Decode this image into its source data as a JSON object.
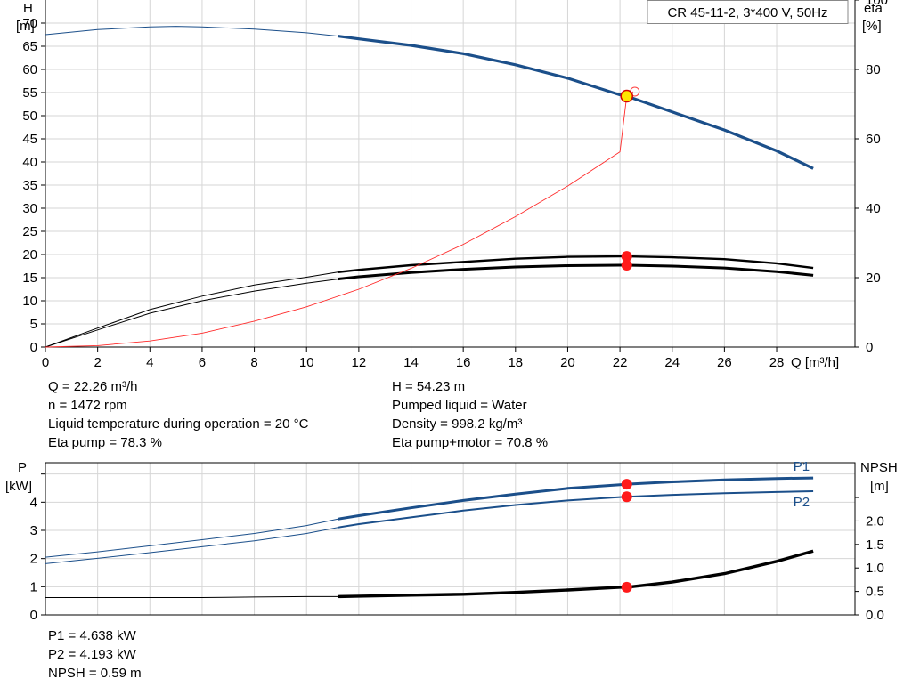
{
  "chart_data": [
    {
      "type": "line",
      "title": "",
      "box_label": "CR 45-11-2, 3*400 V, 50Hz",
      "xlabel": "Q [m³/h]",
      "xlim": [
        0,
        31
      ],
      "x_ticks": [
        0,
        2,
        4,
        6,
        8,
        10,
        12,
        14,
        16,
        18,
        20,
        22,
        24,
        26,
        28
      ],
      "left_axis": {
        "label": "H",
        "unit": "[m]",
        "ylim": [
          0,
          75
        ],
        "ticks": [
          0,
          5,
          10,
          15,
          20,
          25,
          30,
          35,
          40,
          45,
          50,
          55,
          60,
          65,
          70
        ]
      },
      "right_axis": {
        "label": "eta",
        "unit": "[%]",
        "ylim": [
          0,
          100
        ],
        "ticks": [
          0,
          20,
          40,
          60,
          80,
          100
        ]
      },
      "grid": true,
      "series": [
        {
          "key": "H",
          "color": "#1b4f8a",
          "axis": "left",
          "recommended_range": [
            11.2,
            29.4
          ],
          "x": [
            0,
            2,
            4,
            5,
            6,
            8,
            10,
            11.2,
            12,
            14,
            16,
            18,
            20,
            22,
            22.26,
            24,
            26,
            28,
            29.4
          ],
          "y": [
            67.5,
            68.6,
            69.2,
            69.3,
            69.2,
            68.7,
            67.9,
            67.2,
            66.6,
            65.2,
            63.4,
            61.0,
            58.1,
            54.5,
            54.23,
            50.8,
            46.9,
            42.4,
            38.6
          ]
        },
        {
          "key": "eta_pump",
          "color": "#000000",
          "axis": "left",
          "recommended_range": [
            11.2,
            29.4
          ],
          "x": [
            0,
            2,
            4,
            6,
            8,
            10,
            11.2,
            12,
            14,
            16,
            18,
            20,
            22,
            22.26,
            24,
            26,
            28,
            29.4
          ],
          "y": [
            0,
            4.1,
            8.1,
            11.0,
            13.4,
            15.1,
            16.2,
            16.7,
            17.7,
            18.4,
            19.1,
            19.5,
            19.6,
            19.6,
            19.4,
            19.0,
            18.1,
            17.1
          ]
        },
        {
          "key": "eta_pump_motor",
          "color": "#000000",
          "axis": "left",
          "recommended_range": [
            11.2,
            29.4
          ],
          "x": [
            0,
            2,
            4,
            6,
            8,
            10,
            11.2,
            12,
            14,
            16,
            18,
            20,
            22,
            22.26,
            24,
            26,
            28,
            29.4
          ],
          "y": [
            0,
            3.7,
            7.3,
            10.0,
            12.1,
            13.8,
            14.7,
            15.2,
            16.1,
            16.8,
            17.3,
            17.6,
            17.7,
            17.7,
            17.5,
            17.1,
            16.3,
            15.5
          ]
        },
        {
          "key": "system",
          "color": "#ff2a2a",
          "axis": "left",
          "x": [
            0,
            2,
            4,
            6,
            8,
            10,
            12,
            14,
            16,
            18,
            20,
            22,
            22.26,
            22.5
          ],
          "y": [
            0,
            0.3,
            1.3,
            3.0,
            5.6,
            8.7,
            12.5,
            17.0,
            22.2,
            28.2,
            34.8,
            42.2,
            54.23,
            55.2
          ]
        }
      ],
      "operating_point": {
        "x": 22.26,
        "H": 54.23,
        "eta_pump": 19.6,
        "eta_pump_motor": 17.7
      }
    },
    {
      "type": "line",
      "title": "",
      "xlim": [
        0,
        31
      ],
      "left_axis": {
        "label": "P",
        "unit": "[kW]",
        "ylim": [
          0,
          5.4
        ],
        "ticks": [
          0,
          1,
          2,
          3,
          4
        ]
      },
      "right_axis": {
        "label": "NPSH",
        "unit": "[m]",
        "ylim": [
          0,
          3.24
        ],
        "ticks": [
          "0.0",
          "0.5",
          "1.0",
          "1.5",
          "2.0"
        ]
      },
      "grid": true,
      "series": [
        {
          "name": "P1",
          "key": "P1",
          "color": "#1b4f8a",
          "axis": "left",
          "recommended_range": [
            11.2,
            29.4
          ],
          "x": [
            0,
            2,
            4,
            6,
            8,
            10,
            11.2,
            12,
            14,
            16,
            18,
            20,
            22,
            22.26,
            24,
            26,
            28,
            29.4
          ],
          "y": [
            2.05,
            2.24,
            2.45,
            2.67,
            2.89,
            3.17,
            3.4,
            3.52,
            3.8,
            4.06,
            4.29,
            4.49,
            4.62,
            4.638,
            4.72,
            4.79,
            4.84,
            4.86
          ]
        },
        {
          "name": "P2",
          "key": "P2",
          "color": "#1b4f8a",
          "axis": "left",
          "recommended_range": [
            11.2,
            29.4
          ],
          "x": [
            0,
            2,
            4,
            6,
            8,
            10,
            11.2,
            12,
            14,
            16,
            18,
            20,
            22,
            22.26,
            24,
            26,
            28,
            29.4
          ],
          "y": [
            1.82,
            2.01,
            2.21,
            2.42,
            2.63,
            2.89,
            3.1,
            3.22,
            3.46,
            3.7,
            3.9,
            4.06,
            4.18,
            4.193,
            4.26,
            4.32,
            4.36,
            4.39
          ]
        },
        {
          "key": "NPSH",
          "color": "#000000",
          "axis": "right",
          "recommended_range": [
            11.2,
            29.4
          ],
          "x": [
            0,
            2,
            4,
            6,
            8,
            10,
            11.2,
            12,
            14,
            16,
            18,
            20,
            22,
            22.26,
            24,
            26,
            28,
            29.4
          ],
          "y": [
            0.37,
            0.37,
            0.37,
            0.37,
            0.38,
            0.39,
            0.39,
            0.4,
            0.42,
            0.44,
            0.48,
            0.53,
            0.59,
            0.59,
            0.7,
            0.88,
            1.14,
            1.36
          ]
        }
      ],
      "operating_point": {
        "x": 22.26,
        "P1": 4.638,
        "P2": 4.193,
        "NPSH": 0.59
      }
    }
  ],
  "duty_info": {
    "left": [
      "Q = 22.26 m³/h",
      "n = 1472 rpm",
      "Liquid temperature during operation = 20 °C",
      "Eta pump = 78.3 %"
    ],
    "right": [
      "H = 54.23 m",
      "Pumped liquid = Water",
      "Density = 998.2 kg/m³",
      "Eta pump+motor = 70.8 %"
    ]
  },
  "power_info": [
    "P1 = 4.638 kW",
    "P2 = 4.193 kW",
    "NPSH = 0.59 m"
  ]
}
